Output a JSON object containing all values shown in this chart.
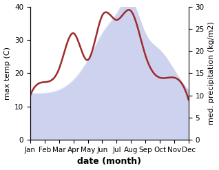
{
  "months": [
    "Jan",
    "Feb",
    "Mar",
    "Apr",
    "May",
    "Jun",
    "Jul",
    "Aug",
    "Sep",
    "Oct",
    "Nov",
    "Dec"
  ],
  "temp": [
    14,
    14,
    15,
    18,
    24,
    32,
    38,
    42,
    32,
    27,
    21,
    15
  ],
  "precip": [
    10,
    13,
    16,
    24,
    18,
    28,
    27,
    29,
    19,
    14,
    14,
    9
  ],
  "temp_fill_color": "#b8c0e8",
  "precip_color": "#9e2a2a",
  "left_ylabel": "max temp (C)",
  "right_ylabel": "med. precipitation (kg/m2)",
  "xlabel": "date (month)",
  "ylim_left": [
    0,
    40
  ],
  "ylim_right": [
    0,
    30
  ],
  "left_yticks": [
    0,
    10,
    20,
    30,
    40
  ],
  "right_yticks": [
    0,
    5,
    10,
    15,
    20,
    25,
    30
  ],
  "label_fontsize": 8,
  "tick_fontsize": 7.5,
  "xlabel_fontsize": 9
}
